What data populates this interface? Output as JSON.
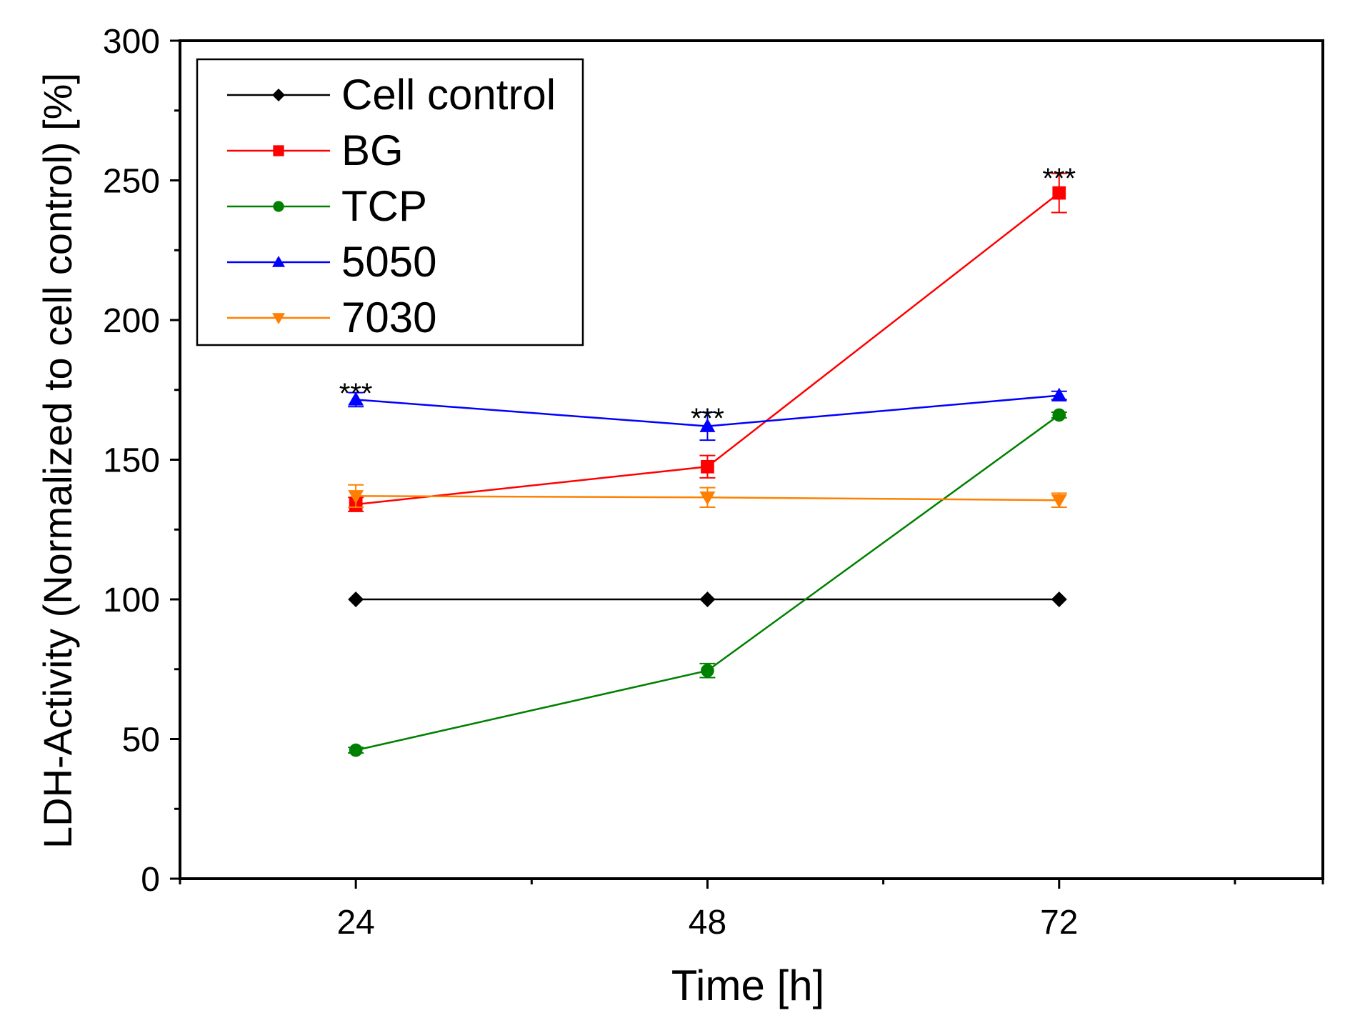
{
  "chart_data": {
    "type": "line",
    "title": "",
    "xlabel": "Time [h]",
    "ylabel": "LDH-Activity (Normalized to cell control) [%]",
    "x": [
      24,
      48,
      72
    ],
    "x_tick_labels": [
      "24",
      "48",
      "72"
    ],
    "xlim": [
      12,
      90
    ],
    "ylim": [
      0,
      300
    ],
    "y_ticks": [
      0,
      50,
      100,
      150,
      200,
      250,
      300
    ],
    "y_tick_labels": [
      "0",
      "50",
      "100",
      "150",
      "200",
      "250",
      "300"
    ],
    "grid": false,
    "legend_position": "top-left",
    "series": [
      {
        "name": "Cell control",
        "color": "#000000",
        "marker": "diamond",
        "values": [
          100,
          100,
          100
        ],
        "errors": [
          0,
          0,
          0
        ]
      },
      {
        "name": "BG",
        "color": "#ff0000",
        "marker": "square",
        "values": [
          134,
          147.5,
          245.5
        ],
        "errors": [
          2.5,
          4,
          7
        ]
      },
      {
        "name": "TCP",
        "color": "#008000",
        "marker": "circle",
        "values": [
          46,
          74.5,
          166
        ],
        "errors": [
          1,
          2.5,
          1
        ]
      },
      {
        "name": "5050",
        "color": "#0000ff",
        "marker": "triangle-up",
        "values": [
          171.5,
          162,
          173
        ],
        "errors": [
          2.5,
          5,
          1.5
        ]
      },
      {
        "name": "7030",
        "color": "#ff8000",
        "marker": "triangle-down",
        "values": [
          137,
          136.5,
          135.5
        ],
        "errors": [
          4,
          3.5,
          2.5
        ]
      }
    ],
    "annotations": [
      {
        "text": "***",
        "x": 24,
        "y": 178
      },
      {
        "text": "***",
        "x": 48,
        "y": 169
      },
      {
        "text": "***",
        "x": 72,
        "y": 255
      }
    ]
  }
}
